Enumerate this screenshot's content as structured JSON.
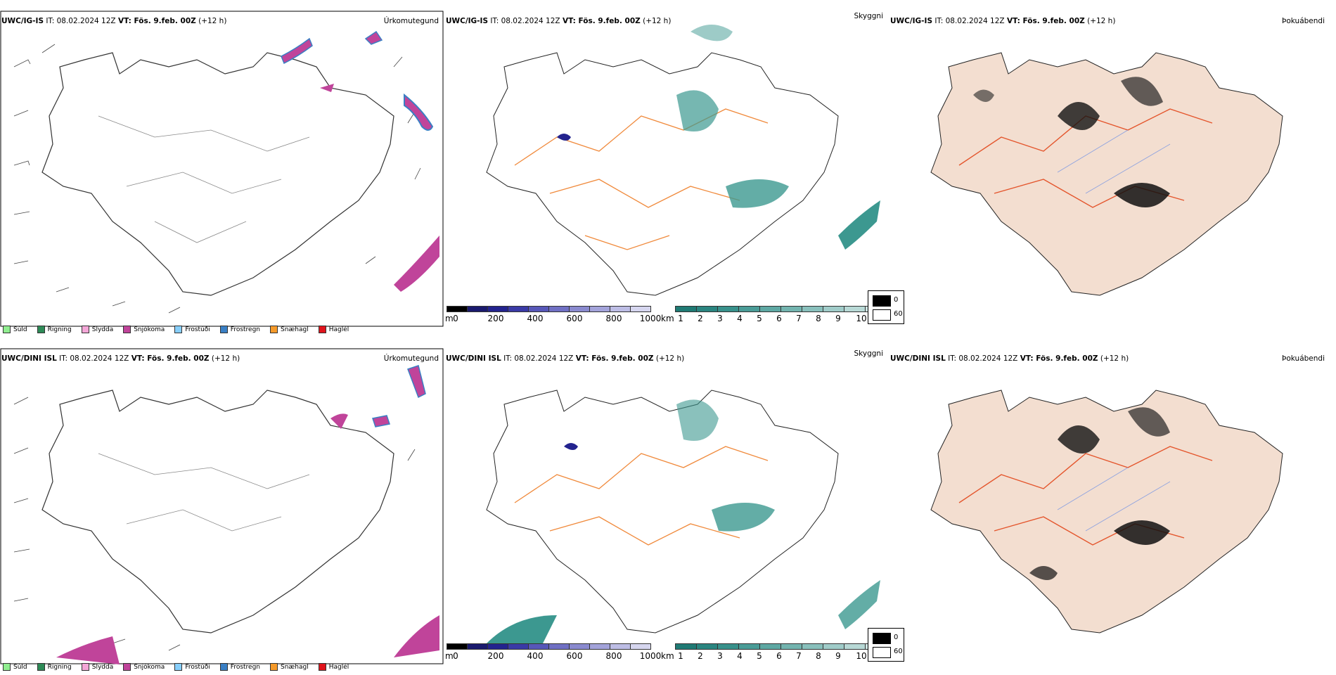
{
  "rows": [
    {
      "model": "UWC/IG-IS",
      "it_label": "IT: 08.02.2024 12Z",
      "vt_label": "VT: Fös. 9.feb. 00Z",
      "lead": "(+12 h)"
    },
    {
      "model": "UWC/DINI ISL",
      "it_label": "IT: 08.02.2024 12Z",
      "vt_label": "VT: Fös. 9.feb. 00Z",
      "lead": "(+12 h)"
    }
  ],
  "panel_titles": {
    "precip_type": "Úrkomutegund",
    "clouds": "Skyggni",
    "fog": "Þokuábendi"
  },
  "precip_legend": [
    {
      "label": "Súld",
      "color": "#90ee90"
    },
    {
      "label": "Rigning",
      "color": "#2e8b57"
    },
    {
      "label": "Slydda",
      "color": "#f4a6d7"
    },
    {
      "label": "Snjókoma",
      "color": "#c0449a"
    },
    {
      "label": "Frostúði",
      "color": "#87cefa"
    },
    {
      "label": "Frostregn",
      "color": "#3a7fc4"
    },
    {
      "label": "Snæhagl",
      "color": "#f59a2a"
    },
    {
      "label": "Haglél",
      "color": "#e0141c"
    }
  ],
  "ceiling_bar": {
    "unit": "m",
    "ticks": [
      "0",
      "200",
      "400",
      "600",
      "800",
      "1000"
    ],
    "colors": [
      "#000000",
      "#1a1a6e",
      "#23238e",
      "#3a3aa6",
      "#5757b8",
      "#7070c4",
      "#8a8acf",
      "#a3a3da",
      "#bdbde5",
      "#d6d6ef"
    ]
  },
  "visibility_bar": {
    "unit": "km",
    "ticks": [
      "1",
      "2",
      "3",
      "4",
      "5",
      "6",
      "7",
      "8",
      "9",
      "10"
    ],
    "colors": [
      "#1f7a74",
      "#2a8580",
      "#38918b",
      "#4a9c97",
      "#5ea8a3",
      "#73b4af",
      "#89c0bc",
      "#a0ccc9",
      "#b8d9d6",
      "#d0e6e4"
    ]
  },
  "fog_legend": {
    "low": "0",
    "high": "60"
  },
  "icons": [
    "wind-barb-icon"
  ],
  "colors": {
    "land_fog": "#f3ded0",
    "roads": "#f08a3c",
    "roads_fog": "#e4552c",
    "cloud_teal": "#3c9890",
    "snow": "#c0449a",
    "frozen_rain": "#3a7fc4"
  }
}
